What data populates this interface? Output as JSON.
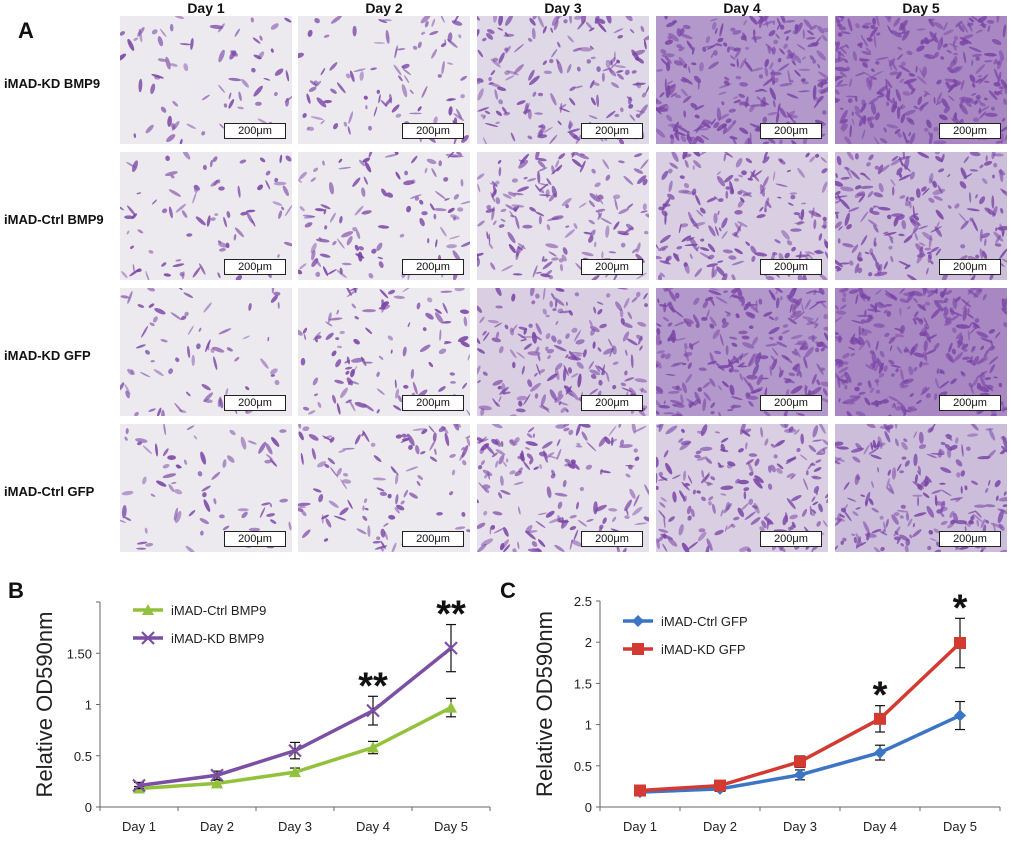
{
  "panels": {
    "a": "A",
    "b": "B",
    "c": "C"
  },
  "micrograph_grid": {
    "columns": [
      "Day 1",
      "Day 2",
      "Day 3",
      "Day 4",
      "Day 5"
    ],
    "rows": [
      "iMAD-KD BMP9",
      "iMAD-Ctrl BMP9",
      "iMAD-KD GFP",
      "iMAD-Ctrl GFP"
    ],
    "scale_bar": "200μm",
    "stain_color": "#7a45a6",
    "background_color": "#eceaef",
    "density_levels": [
      [
        0.15,
        0.25,
        0.55,
        0.9,
        1.0
      ],
      [
        0.2,
        0.3,
        0.5,
        0.6,
        0.7
      ],
      [
        0.15,
        0.3,
        0.6,
        0.9,
        1.0
      ],
      [
        0.15,
        0.3,
        0.5,
        0.6,
        0.7
      ]
    ]
  },
  "chart_data": [
    {
      "type": "line",
      "categories": [
        "Day 1",
        "Day 2",
        "Day 3",
        "Day 4",
        "Day 5"
      ],
      "ylabel": "Relative OD590nm",
      "ylim": [
        0,
        2
      ],
      "yticks": [
        "0",
        "0.5",
        "1",
        "1.50",
        ""
      ],
      "grid": false,
      "legend_position": "top-left",
      "series": [
        {
          "name": "iMAD-Ctrl BMP9",
          "color": "#92c13b",
          "marker": "triangle",
          "values": [
            0.18,
            0.23,
            0.34,
            0.58,
            0.97
          ],
          "errors": [
            0.02,
            0.03,
            0.04,
            0.06,
            0.09
          ]
        },
        {
          "name": "iMAD-KD BMP9",
          "color": "#7b4fa3",
          "marker": "x",
          "values": [
            0.21,
            0.31,
            0.55,
            0.94,
            1.55
          ],
          "errors": [
            0.03,
            0.04,
            0.08,
            0.14,
            0.23
          ]
        }
      ],
      "annotations": [
        {
          "category": "Day 4",
          "text": "**"
        },
        {
          "category": "Day 5",
          "text": "**"
        }
      ]
    },
    {
      "type": "line",
      "categories": [
        "Day 1",
        "Day 2",
        "Day 3",
        "Day 4",
        "Day 5"
      ],
      "ylabel": "Relative OD590nm",
      "ylim": [
        0,
        2.5
      ],
      "yticks": [
        "0",
        "0.5",
        "1",
        "1.5",
        "2",
        "2.5"
      ],
      "grid": false,
      "legend_position": "top-left",
      "series": [
        {
          "name": "iMAD-Ctrl GFP",
          "color": "#3b75c4",
          "marker": "diamond",
          "values": [
            0.18,
            0.22,
            0.39,
            0.66,
            1.11
          ],
          "errors": [
            0.02,
            0.03,
            0.06,
            0.09,
            0.17
          ]
        },
        {
          "name": "iMAD-KD GFP",
          "color": "#d23a32",
          "marker": "square",
          "values": [
            0.2,
            0.26,
            0.55,
            1.07,
            1.99
          ],
          "errors": [
            0.02,
            0.03,
            0.07,
            0.16,
            0.3
          ]
        }
      ],
      "annotations": [
        {
          "category": "Day 4",
          "text": "*"
        },
        {
          "category": "Day 5",
          "text": "*"
        }
      ]
    }
  ]
}
